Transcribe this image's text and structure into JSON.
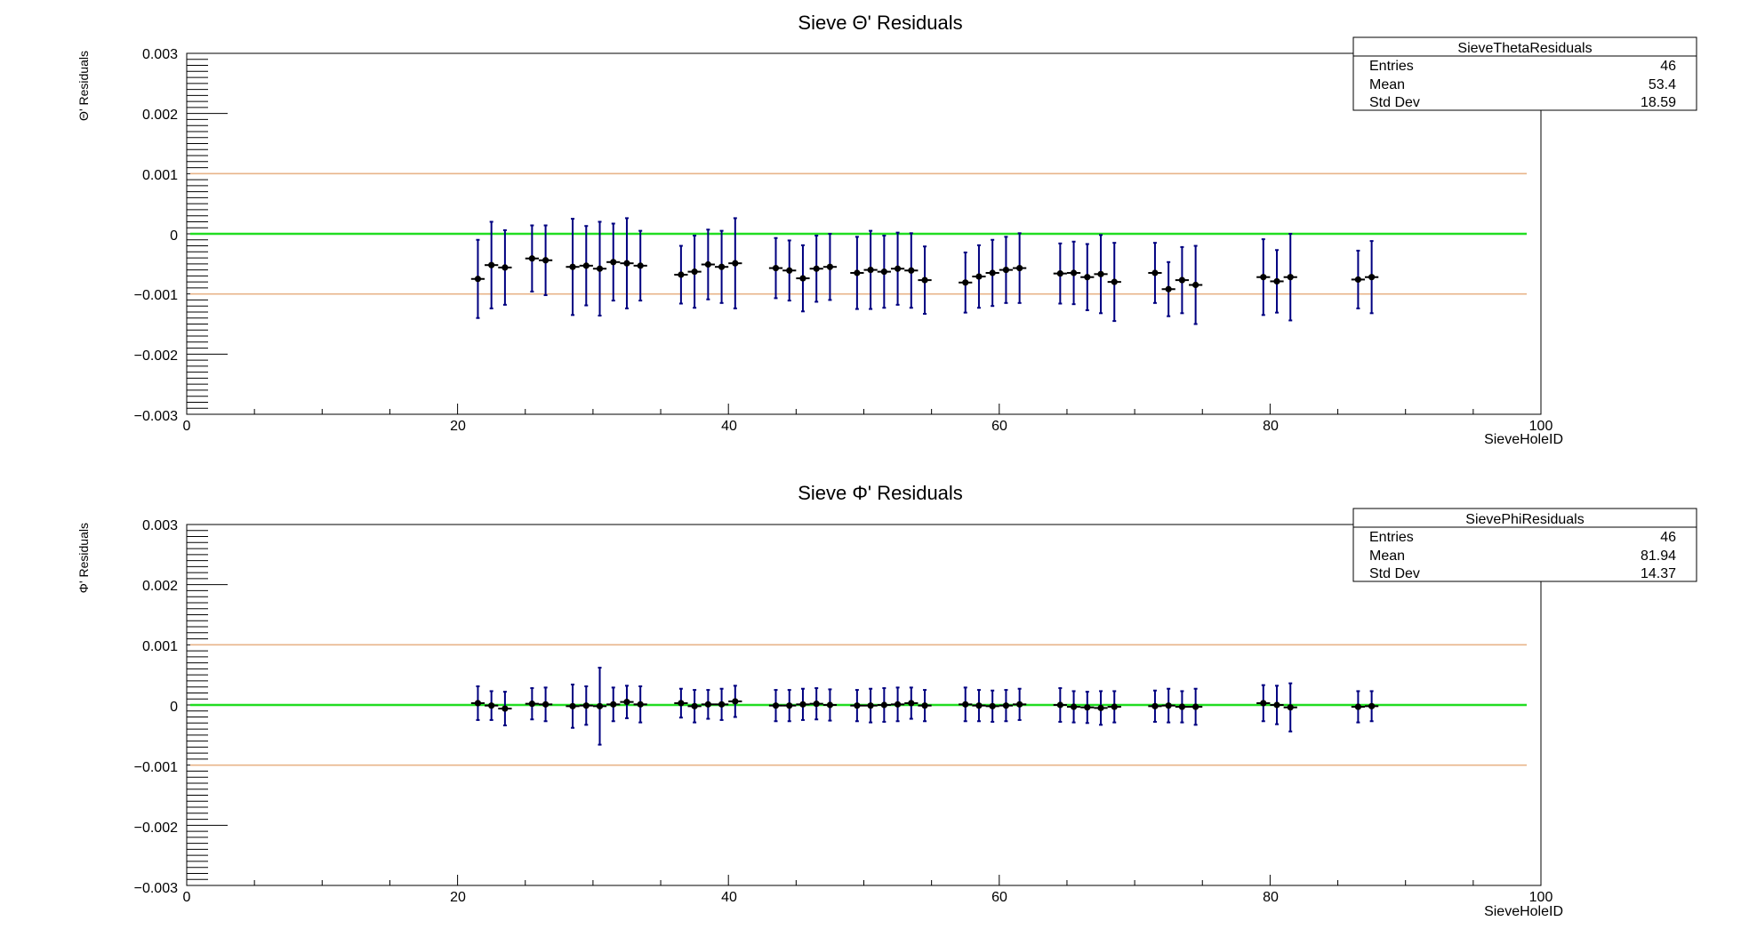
{
  "chart_data": [
    {
      "type": "scatter",
      "title": "Sieve Θ' Residuals",
      "xlabel": "SieveHoleID",
      "ylabel": "Θ' Residuals",
      "xlim": [
        0,
        100
      ],
      "ylim": [
        -0.003,
        0.003
      ],
      "x_ticks": [
        "0",
        "20",
        "40",
        "60",
        "80",
        "100"
      ],
      "y_ticks": [
        "0.003",
        "0.002",
        "0.001",
        "0",
        "−0.001",
        "−0.002",
        "−0.003"
      ],
      "reference_lines": [
        {
          "y": 0.001,
          "color": "#e8b48a"
        },
        {
          "y": 0,
          "color": "#22dd22"
        },
        {
          "y": -0.001,
          "color": "#e8b48a"
        }
      ],
      "stats_box": {
        "name": "SieveThetaResiduals",
        "rows": [
          [
            "Entries",
            "46"
          ],
          [
            "Mean",
            "53.4"
          ],
          [
            "Std Dev",
            "18.59"
          ]
        ]
      },
      "marker_color": "#000000",
      "errorbar_color": "#000080",
      "points": [
        {
          "x": 21.5,
          "y": -0.00075,
          "err": 0.00065
        },
        {
          "x": 22.5,
          "y": -0.00052,
          "err": 0.00072
        },
        {
          "x": 23.5,
          "y": -0.00056,
          "err": 0.00062
        },
        {
          "x": 25.5,
          "y": -0.00041,
          "err": 0.00055
        },
        {
          "x": 26.5,
          "y": -0.00044,
          "err": 0.00058
        },
        {
          "x": 28.5,
          "y": -0.00055,
          "err": 0.0008
        },
        {
          "x": 29.5,
          "y": -0.00053,
          "err": 0.00066
        },
        {
          "x": 30.5,
          "y": -0.00058,
          "err": 0.00078
        },
        {
          "x": 31.5,
          "y": -0.00047,
          "err": 0.00064
        },
        {
          "x": 32.5,
          "y": -0.00049,
          "err": 0.00075
        },
        {
          "x": 33.5,
          "y": -0.00053,
          "err": 0.00058
        },
        {
          "x": 36.5,
          "y": -0.00068,
          "err": 0.00048
        },
        {
          "x": 37.5,
          "y": -0.00063,
          "err": 0.0006
        },
        {
          "x": 38.5,
          "y": -0.00051,
          "err": 0.00058
        },
        {
          "x": 39.5,
          "y": -0.00055,
          "err": 0.0006
        },
        {
          "x": 40.5,
          "y": -0.00049,
          "err": 0.00075
        },
        {
          "x": 43.5,
          "y": -0.00057,
          "err": 0.0005
        },
        {
          "x": 44.5,
          "y": -0.00061,
          "err": 0.0005
        },
        {
          "x": 45.5,
          "y": -0.00074,
          "err": 0.00055
        },
        {
          "x": 46.5,
          "y": -0.00058,
          "err": 0.00055
        },
        {
          "x": 47.5,
          "y": -0.00055,
          "err": 0.00055
        },
        {
          "x": 49.5,
          "y": -0.00065,
          "err": 0.0006
        },
        {
          "x": 50.5,
          "y": -0.0006,
          "err": 0.00065
        },
        {
          "x": 51.5,
          "y": -0.00063,
          "err": 0.0006
        },
        {
          "x": 52.5,
          "y": -0.00058,
          "err": 0.0006
        },
        {
          "x": 53.5,
          "y": -0.00061,
          "err": 0.00062
        },
        {
          "x": 54.5,
          "y": -0.00077,
          "err": 0.00056
        },
        {
          "x": 57.5,
          "y": -0.00081,
          "err": 0.0005
        },
        {
          "x": 58.5,
          "y": -0.00071,
          "err": 0.00052
        },
        {
          "x": 59.5,
          "y": -0.00065,
          "err": 0.00055
        },
        {
          "x": 60.5,
          "y": -0.0006,
          "err": 0.00055
        },
        {
          "x": 61.5,
          "y": -0.00057,
          "err": 0.00058
        },
        {
          "x": 64.5,
          "y": -0.00066,
          "err": 0.0005
        },
        {
          "x": 65.5,
          "y": -0.00065,
          "err": 0.00052
        },
        {
          "x": 66.5,
          "y": -0.00072,
          "err": 0.00055
        },
        {
          "x": 67.5,
          "y": -0.00067,
          "err": 0.00065
        },
        {
          "x": 68.5,
          "y": -0.0008,
          "err": 0.00065
        },
        {
          "x": 71.5,
          "y": -0.00065,
          "err": 0.0005
        },
        {
          "x": 72.5,
          "y": -0.00092,
          "err": 0.00045
        },
        {
          "x": 73.5,
          "y": -0.00077,
          "err": 0.00055
        },
        {
          "x": 74.5,
          "y": -0.00085,
          "err": 0.00065
        },
        {
          "x": 79.5,
          "y": -0.00072,
          "err": 0.00063
        },
        {
          "x": 80.5,
          "y": -0.00079,
          "err": 0.00052
        },
        {
          "x": 81.5,
          "y": -0.00072,
          "err": 0.00072
        },
        {
          "x": 86.5,
          "y": -0.00076,
          "err": 0.00048
        },
        {
          "x": 87.5,
          "y": -0.00072,
          "err": 0.0006
        }
      ]
    },
    {
      "type": "scatter",
      "title": "Sieve Φ' Residuals",
      "xlabel": "SieveHoleID",
      "ylabel": "Φ' Residuals",
      "xlim": [
        0,
        100
      ],
      "ylim": [
        -0.003,
        0.003
      ],
      "x_ticks": [
        "0",
        "20",
        "40",
        "60",
        "80",
        "100"
      ],
      "y_ticks": [
        "0.003",
        "0.002",
        "0.001",
        "0",
        "−0.001",
        "−0.002",
        "−0.003"
      ],
      "reference_lines": [
        {
          "y": 0.001,
          "color": "#e8b48a"
        },
        {
          "y": 0,
          "color": "#22dd22"
        },
        {
          "y": -0.001,
          "color": "#e8b48a"
        }
      ],
      "stats_box": {
        "name": "SievePhiResiduals",
        "rows": [
          [
            "Entries",
            "46"
          ],
          [
            "Mean",
            "81.94"
          ],
          [
            "Std Dev",
            "14.37"
          ]
        ]
      },
      "marker_color": "#000000",
      "errorbar_color": "#000080",
      "points": [
        {
          "x": 21.5,
          "y": 3e-05,
          "err": 0.00028
        },
        {
          "x": 22.5,
          "y": -1e-05,
          "err": 0.00024
        },
        {
          "x": 23.5,
          "y": -6e-05,
          "err": 0.00028
        },
        {
          "x": 25.5,
          "y": 2e-05,
          "err": 0.00026
        },
        {
          "x": 26.5,
          "y": 1e-05,
          "err": 0.00028
        },
        {
          "x": 28.5,
          "y": -2e-05,
          "err": 0.00036
        },
        {
          "x": 29.5,
          "y": -1e-05,
          "err": 0.00032
        },
        {
          "x": 30.5,
          "y": -2e-05,
          "err": 0.00064
        },
        {
          "x": 31.5,
          "y": 1e-05,
          "err": 0.00028
        },
        {
          "x": 32.5,
          "y": 5e-05,
          "err": 0.00027
        },
        {
          "x": 33.5,
          "y": 1e-05,
          "err": 0.0003
        },
        {
          "x": 36.5,
          "y": 3e-05,
          "err": 0.00024
        },
        {
          "x": 37.5,
          "y": -2e-05,
          "err": 0.00027
        },
        {
          "x": 38.5,
          "y": 1e-05,
          "err": 0.00024
        },
        {
          "x": 39.5,
          "y": 1e-05,
          "err": 0.00026
        },
        {
          "x": 40.5,
          "y": 6e-05,
          "err": 0.00026
        },
        {
          "x": 43.5,
          "y": -1e-05,
          "err": 0.00026
        },
        {
          "x": 44.5,
          "y": -1e-05,
          "err": 0.00026
        },
        {
          "x": 45.5,
          "y": 1e-05,
          "err": 0.00026
        },
        {
          "x": 46.5,
          "y": 2e-05,
          "err": 0.00026
        },
        {
          "x": 47.5,
          "y": 0.0,
          "err": 0.00026
        },
        {
          "x": 49.5,
          "y": -1e-05,
          "err": 0.00026
        },
        {
          "x": 50.5,
          "y": -1e-05,
          "err": 0.00028
        },
        {
          "x": 51.5,
          "y": 0.0,
          "err": 0.00028
        },
        {
          "x": 52.5,
          "y": 1e-05,
          "err": 0.00028
        },
        {
          "x": 53.5,
          "y": 3e-05,
          "err": 0.00026
        },
        {
          "x": 54.5,
          "y": -1e-05,
          "err": 0.00026
        },
        {
          "x": 57.5,
          "y": 1e-05,
          "err": 0.00028
        },
        {
          "x": 58.5,
          "y": -1e-05,
          "err": 0.00026
        },
        {
          "x": 59.5,
          "y": -2e-05,
          "err": 0.00026
        },
        {
          "x": 60.5,
          "y": -1e-05,
          "err": 0.00026
        },
        {
          "x": 61.5,
          "y": 1e-05,
          "err": 0.00026
        },
        {
          "x": 64.5,
          "y": 0.0,
          "err": 0.00028
        },
        {
          "x": 65.5,
          "y": -3e-05,
          "err": 0.00026
        },
        {
          "x": 66.5,
          "y": -4e-05,
          "err": 0.00026
        },
        {
          "x": 67.5,
          "y": -5e-05,
          "err": 0.00028
        },
        {
          "x": 68.5,
          "y": -3e-05,
          "err": 0.00026
        },
        {
          "x": 71.5,
          "y": -2e-05,
          "err": 0.00026
        },
        {
          "x": 72.5,
          "y": -1e-05,
          "err": 0.00028
        },
        {
          "x": 73.5,
          "y": -3e-05,
          "err": 0.00026
        },
        {
          "x": 74.5,
          "y": -3e-05,
          "err": 0.0003
        },
        {
          "x": 79.5,
          "y": 3e-05,
          "err": 0.0003
        },
        {
          "x": 80.5,
          "y": 0.0,
          "err": 0.00032
        },
        {
          "x": 81.5,
          "y": -4e-05,
          "err": 0.0004
        },
        {
          "x": 86.5,
          "y": -3e-05,
          "err": 0.00026
        },
        {
          "x": 87.5,
          "y": -2e-05,
          "err": 0.00025
        }
      ]
    }
  ]
}
